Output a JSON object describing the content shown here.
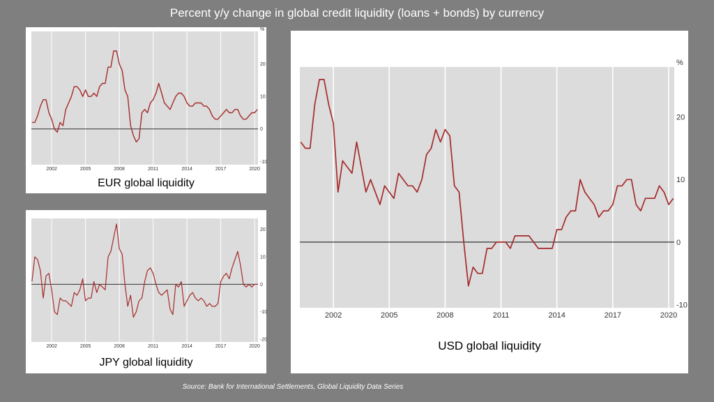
{
  "title": "Percent y/y change in global credit liquidity (loans + bonds) by currency",
  "source": "Source: Bank for International Settlements, Global Liquidity Data Series",
  "colors": {
    "background": "#7f7f7f",
    "plot_area": "#dcdcdc",
    "line": "#a52a2a",
    "zero_line": "#333333"
  },
  "chart_data": [
    {
      "type": "line",
      "title": "EUR global liquidity",
      "ylabel": "%",
      "xlim": [
        2000.2,
        2020.3
      ],
      "ylim": [
        -11,
        30
      ],
      "x_ticks": [
        2002,
        2005,
        2008,
        2011,
        2014,
        2017,
        2020
      ],
      "y_ticks": [
        -10,
        0,
        10,
        20
      ],
      "grid": "vertical",
      "series": [
        {
          "x": [
            2000.25,
            2000.5,
            2000.75,
            2001,
            2001.25,
            2001.5,
            2001.75,
            2002,
            2002.25,
            2002.5,
            2002.75,
            2003,
            2003.25,
            2003.5,
            2003.75,
            2004,
            2004.25,
            2004.5,
            2004.75,
            2005,
            2005.25,
            2005.5,
            2005.75,
            2006,
            2006.25,
            2006.5,
            2006.75,
            2007,
            2007.25,
            2007.5,
            2007.75,
            2008,
            2008.25,
            2008.5,
            2008.75,
            2009,
            2009.25,
            2009.5,
            2009.75,
            2010,
            2010.25,
            2010.5,
            2010.75,
            2011,
            2011.25,
            2011.5,
            2011.75,
            2012,
            2012.25,
            2012.5,
            2012.75,
            2013,
            2013.25,
            2013.5,
            2013.75,
            2014,
            2014.25,
            2014.5,
            2014.75,
            2015,
            2015.25,
            2015.5,
            2015.75,
            2016,
            2016.25,
            2016.5,
            2016.75,
            2017,
            2017.25,
            2017.5,
            2017.75,
            2018,
            2018.25,
            2018.5,
            2018.75,
            2019,
            2019.25,
            2019.5,
            2019.75,
            2020,
            2020.25
          ],
          "values": [
            2,
            2,
            4,
            7,
            9,
            9,
            5,
            3,
            0,
            -1,
            2,
            1,
            6,
            8,
            10,
            13,
            13,
            12,
            10,
            12,
            10,
            10,
            11,
            10,
            13,
            14,
            14,
            19,
            19,
            24,
            24,
            20,
            18,
            12,
            10,
            1,
            -2,
            -4,
            -3,
            5,
            6,
            5,
            8,
            9,
            11,
            14,
            11,
            8,
            7,
            6,
            8,
            10,
            11,
            11,
            10,
            8,
            7,
            7,
            8,
            8,
            8,
            7,
            7,
            6,
            4,
            3,
            3,
            4,
            5,
            6,
            5,
            5,
            6,
            6,
            4,
            3,
            3,
            4,
            5,
            5,
            6
          ]
        }
      ]
    },
    {
      "type": "line",
      "title": "JPY global liquidity",
      "ylabel": "",
      "xlim": [
        2000.2,
        2020.3
      ],
      "ylim": [
        -21,
        24
      ],
      "x_ticks": [
        2002,
        2005,
        2008,
        2011,
        2014,
        2017,
        2020
      ],
      "y_ticks": [
        -20,
        -10,
        0,
        10,
        20
      ],
      "grid": "vertical",
      "series": [
        {
          "x": [
            2000.25,
            2000.5,
            2000.75,
            2001,
            2001.25,
            2001.5,
            2001.75,
            2002,
            2002.25,
            2002.5,
            2002.75,
            2003,
            2003.25,
            2003.5,
            2003.75,
            2004,
            2004.25,
            2004.5,
            2004.75,
            2005,
            2005.25,
            2005.5,
            2005.75,
            2006,
            2006.25,
            2006.5,
            2006.75,
            2007,
            2007.25,
            2007.5,
            2007.75,
            2008,
            2008.25,
            2008.5,
            2008.75,
            2009,
            2009.25,
            2009.5,
            2009.75,
            2010,
            2010.25,
            2010.5,
            2010.75,
            2011,
            2011.25,
            2011.5,
            2011.75,
            2012,
            2012.25,
            2012.5,
            2012.75,
            2013,
            2013.25,
            2013.5,
            2013.75,
            2014,
            2014.25,
            2014.5,
            2014.75,
            2015,
            2015.25,
            2015.5,
            2015.75,
            2016,
            2016.25,
            2016.5,
            2016.75,
            2017,
            2017.25,
            2017.5,
            2017.75,
            2018,
            2018.25,
            2018.5,
            2018.75,
            2019,
            2019.25,
            2019.5,
            2019.75,
            2020,
            2020.25
          ],
          "values": [
            1,
            10,
            9,
            5,
            -5,
            3,
            4,
            -2,
            -10,
            -11,
            -5,
            -6,
            -6,
            -7,
            -8,
            -3,
            -4,
            -2,
            2,
            -6,
            -5,
            -5,
            1,
            -3,
            0,
            -1,
            -2,
            10,
            12,
            17,
            22,
            13,
            11,
            0,
            -8,
            -4,
            -12,
            -10,
            -6,
            -5,
            1,
            5,
            6,
            4,
            0,
            -3,
            -4,
            -3,
            -2,
            -9,
            -11,
            0,
            -1,
            1,
            -8,
            -6,
            -4,
            -3,
            -5,
            -6,
            -5,
            -6,
            -8,
            -7,
            -8,
            -8,
            -7,
            1,
            3,
            4,
            2,
            6,
            9,
            12,
            7,
            0,
            -1,
            0,
            -1,
            0,
            0
          ]
        }
      ]
    },
    {
      "type": "line",
      "title": "USD global liquidity",
      "ylabel": "%",
      "xlim": [
        2000.2,
        2020.3
      ],
      "ylim": [
        -10.5,
        28
      ],
      "x_ticks": [
        2002,
        2005,
        2008,
        2011,
        2014,
        2017,
        2020
      ],
      "y_ticks": [
        -10,
        0,
        10,
        20
      ],
      "grid": "vertical",
      "series": [
        {
          "x": [
            2000.25,
            2000.5,
            2000.75,
            2001,
            2001.25,
            2001.5,
            2001.75,
            2002,
            2002.25,
            2002.5,
            2002.75,
            2003,
            2003.25,
            2003.5,
            2003.75,
            2004,
            2004.25,
            2004.5,
            2004.75,
            2005,
            2005.25,
            2005.5,
            2005.75,
            2006,
            2006.25,
            2006.5,
            2006.75,
            2007,
            2007.25,
            2007.5,
            2007.75,
            2008,
            2008.25,
            2008.5,
            2008.75,
            2009,
            2009.25,
            2009.5,
            2009.75,
            2010,
            2010.25,
            2010.5,
            2010.75,
            2011,
            2011.25,
            2011.5,
            2011.75,
            2012,
            2012.25,
            2012.5,
            2012.75,
            2013,
            2013.25,
            2013.5,
            2013.75,
            2014,
            2014.25,
            2014.5,
            2014.75,
            2015,
            2015.25,
            2015.5,
            2015.75,
            2016,
            2016.25,
            2016.5,
            2016.75,
            2017,
            2017.25,
            2017.5,
            2017.75,
            2018,
            2018.25,
            2018.5,
            2018.75,
            2019,
            2019.25,
            2019.5,
            2019.75,
            2020,
            2020.25
          ],
          "values": [
            16,
            15,
            15,
            22,
            26,
            26,
            22,
            19,
            8,
            13,
            12,
            11,
            16,
            12,
            8,
            10,
            8,
            6,
            9,
            8,
            7,
            11,
            10,
            9,
            9,
            8,
            10,
            14,
            15,
            18,
            16,
            18,
            17,
            9,
            8,
            0,
            -7,
            -4,
            -5,
            -5,
            -1,
            -1,
            0,
            0,
            0,
            -1,
            1,
            1,
            1,
            1,
            0,
            -1,
            -1,
            -1,
            -1,
            2,
            2,
            4,
            5,
            5,
            10,
            8,
            7,
            6,
            4,
            5,
            5,
            6,
            9,
            9,
            10,
            10,
            6,
            5,
            7,
            7,
            7,
            9,
            8,
            6,
            7
          ]
        }
      ]
    }
  ]
}
